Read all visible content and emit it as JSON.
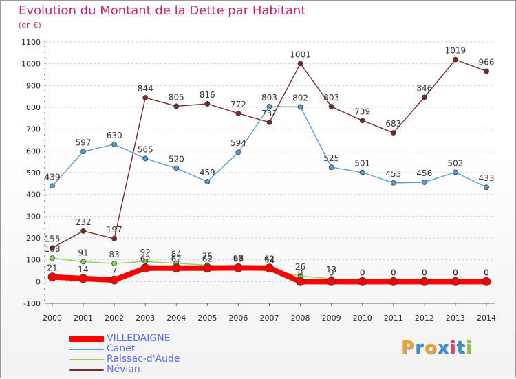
{
  "header": {
    "title": "Evolution du Montant de la Dette par Habitant",
    "subtitle": "(en €)"
  },
  "logo": {
    "letters": [
      "P",
      "r",
      "o",
      "x",
      "i",
      "t",
      "i"
    ],
    "colors": [
      "#e8a33a",
      "#3d8fd1",
      "#e8a33a",
      "#3d8fd1",
      "#e63b7a",
      "#3d8fd1",
      "#8cc63f"
    ]
  },
  "chart_data": {
    "type": "line",
    "title": "Evolution du Montant de la Dette par Habitant",
    "subtitle": "(en €)",
    "xlabel": "",
    "ylabel": "",
    "categories": [
      "2000",
      "2001",
      "2002",
      "2003",
      "2004",
      "2005",
      "2006",
      "2007",
      "2008",
      "2009",
      "2010",
      "2011",
      "2012",
      "2013",
      "2014"
    ],
    "ylim": [
      -100,
      1100
    ],
    "yticks": [
      "-100",
      "0",
      "100",
      "200",
      "300",
      "400",
      "500",
      "600",
      "700",
      "800",
      "900",
      "1000",
      "1100"
    ],
    "grid": "horizontal dashed",
    "legend_position": "bottom-left",
    "series": [
      {
        "name": "Névian",
        "color": "#7a2a2a",
        "values": [
          155,
          232,
          197,
          844,
          805,
          816,
          772,
          731,
          1001,
          803,
          739,
          683,
          846,
          1019,
          966
        ],
        "labels": [
          "155",
          "232",
          "197",
          "844",
          "805",
          "816",
          "772",
          "731",
          "1001",
          "803",
          "739",
          "683",
          "846",
          "1019",
          "966"
        ]
      },
      {
        "name": "Canet",
        "color": "#5b9bd5",
        "values": [
          439,
          597,
          630,
          565,
          520,
          459,
          594,
          803,
          802,
          525,
          501,
          453,
          456,
          502,
          433
        ],
        "labels": [
          "439",
          "597",
          "630",
          "565",
          "520",
          "459",
          "594",
          "803",
          "802",
          "525",
          "501",
          "453",
          "456",
          "502",
          "433"
        ]
      },
      {
        "name": "Raissac-d'Aude",
        "color": "#8fd14f",
        "values": [
          108,
          91,
          83,
          92,
          84,
          75,
          68,
          54,
          26,
          13,
          0,
          0,
          0,
          0,
          0
        ],
        "labels": [
          "108",
          "91",
          "83",
          "92",
          "84",
          "75",
          "68",
          "54",
          "26",
          "13",
          "0",
          "0",
          "0",
          "0",
          "0"
        ]
      },
      {
        "name": "VILLEDAIGNE",
        "color": "#ff0000",
        "values": [
          21,
          14,
          7,
          62,
          62,
          62,
          63,
          62,
          0,
          0,
          0,
          0,
          0,
          0,
          0
        ],
        "labels": [
          "21",
          "14",
          "7",
          "62",
          "62",
          "62",
          "63",
          "62",
          "0",
          "0",
          "0",
          "0",
          "0",
          "0",
          "0"
        ]
      }
    ],
    "legend": [
      {
        "name": "VILLEDAIGNE",
        "color": "#ff0000"
      },
      {
        "name": "Canet",
        "color": "#5b9bd5"
      },
      {
        "name": "Raissac-d'Aude",
        "color": "#8fd14f"
      },
      {
        "name": "Névian",
        "color": "#7a2a2a"
      }
    ]
  }
}
